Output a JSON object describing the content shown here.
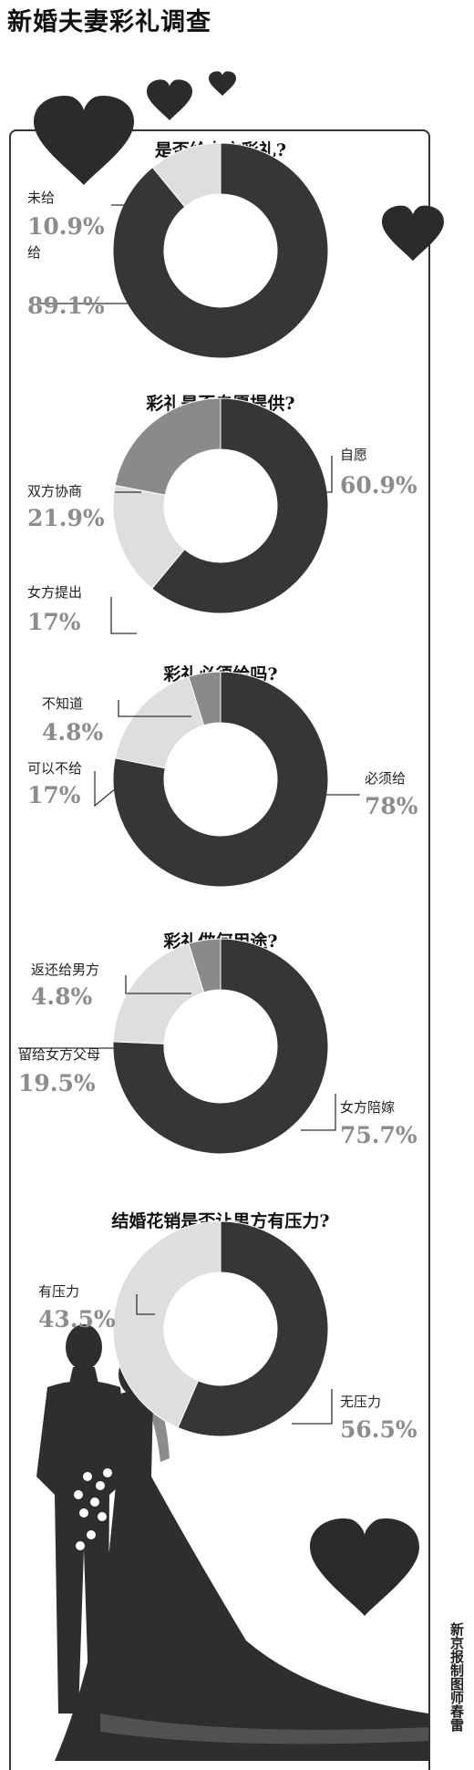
{
  "title": "新婚夫妻彩礼调查",
  "credit": "新京报制图师春雷",
  "colors": {
    "dark": "#363636",
    "mid": "#8a8a8a",
    "light": "#dedede",
    "value_text": "#8c8c8c"
  },
  "chart_data": [
    {
      "type": "pie",
      "title": "是否给女方彩礼?",
      "slices": [
        {
          "label": "给",
          "value": 89.1,
          "value_text": "89.1%",
          "color": "dark"
        },
        {
          "label": "未给",
          "value": 10.9,
          "value_text": "10.9%",
          "color": "light"
        }
      ]
    },
    {
      "type": "pie",
      "title": "彩礼是否自愿提供?",
      "slices": [
        {
          "label": "自愿",
          "value": 60.9,
          "value_text": "60.9%",
          "color": "dark"
        },
        {
          "label": "女方提出",
          "value": 17,
          "value_text": "17%",
          "color": "light"
        },
        {
          "label": "双方协商",
          "value": 21.9,
          "value_text": "21.9%",
          "color": "mid"
        }
      ]
    },
    {
      "type": "pie",
      "title": "彩礼必须给吗?",
      "slices": [
        {
          "label": "必须给",
          "value": 78,
          "value_text": "78%",
          "color": "dark"
        },
        {
          "label": "可以不给",
          "value": 17,
          "value_text": "17%",
          "color": "light"
        },
        {
          "label": "不知道",
          "value": 4.8,
          "value_text": "4.8%",
          "color": "mid"
        }
      ]
    },
    {
      "type": "pie",
      "title": "彩礼做何用途?",
      "slices": [
        {
          "label": "女方陪嫁",
          "value": 75.7,
          "value_text": "75.7%",
          "color": "dark"
        },
        {
          "label": "留给女方父母",
          "value": 19.5,
          "value_text": "19.5%",
          "color": "light"
        },
        {
          "label": "返还给男方",
          "value": 4.8,
          "value_text": "4.8%",
          "color": "mid"
        }
      ]
    },
    {
      "type": "pie",
      "title": "结婚花销是否让男方有压力?",
      "slices": [
        {
          "label": "无压力",
          "value": 56.5,
          "value_text": "56.5%",
          "color": "dark"
        },
        {
          "label": "有压力",
          "value": 43.5,
          "value_text": "43.5%",
          "color": "light"
        }
      ]
    }
  ]
}
